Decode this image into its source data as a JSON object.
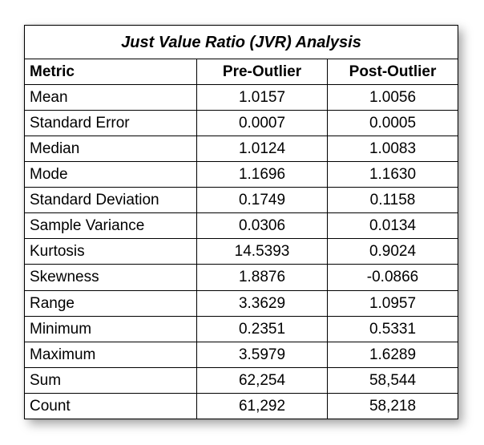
{
  "title": "Just Value Ratio (JVR) Analysis",
  "headers": [
    "Metric",
    "Pre-Outlier",
    "Post-Outlier"
  ],
  "rows": [
    [
      "Mean",
      "1.0157",
      "1.0056"
    ],
    [
      "Standard Error",
      "0.0007",
      "0.0005"
    ],
    [
      "Median",
      "1.0124",
      "1.0083"
    ],
    [
      "Mode",
      "1.1696",
      "1.1630"
    ],
    [
      "Standard Deviation",
      "0.1749",
      "0.1158"
    ],
    [
      "Sample Variance",
      "0.0306",
      "0.0134"
    ],
    [
      "Kurtosis",
      "14.5393",
      "0.9024"
    ],
    [
      "Skewness",
      "1.8876",
      "-0.0866"
    ],
    [
      "Range",
      "3.3629",
      "1.0957"
    ],
    [
      "Minimum",
      "0.2351",
      "0.5331"
    ],
    [
      "Maximum",
      "3.5979",
      "1.6289"
    ],
    [
      "Sum",
      "62,254",
      "58,544"
    ],
    [
      "Count",
      "61,292",
      "58,218"
    ]
  ]
}
